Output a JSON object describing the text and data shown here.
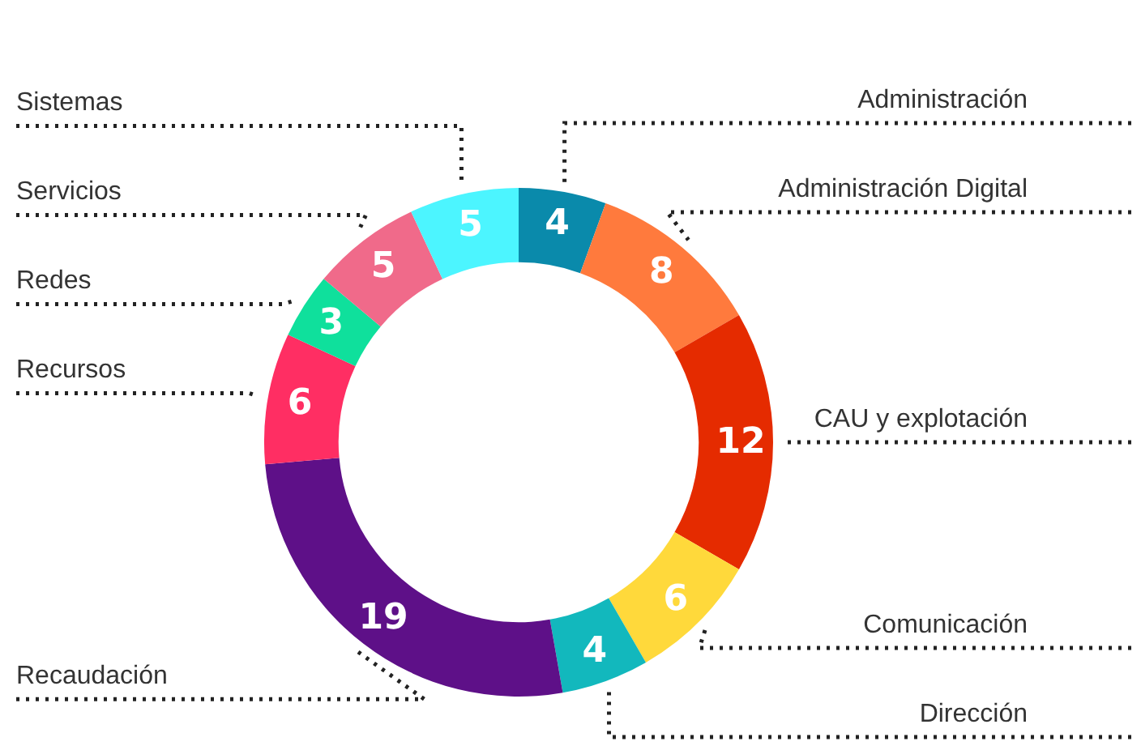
{
  "chart_data": {
    "type": "donut",
    "categories": [
      "Administración",
      "Administración Digital",
      "CAU y explotación",
      "Comunicación",
      "Dirección",
      "Recaudación",
      "Recursos",
      "Redes",
      "Servicios",
      "Sistemas"
    ],
    "values": [
      4,
      8,
      12,
      6,
      4,
      19,
      6,
      3,
      5,
      5
    ],
    "colors": [
      "#0a8aab",
      "#ff7a3d",
      "#e52b00",
      "#ffd93b",
      "#12b8bd",
      "#5e1088",
      "#ff2e63",
      "#0fe09c",
      "#f06a8a",
      "#4cf5ff"
    ],
    "data_labels": true,
    "legend": false
  }
}
